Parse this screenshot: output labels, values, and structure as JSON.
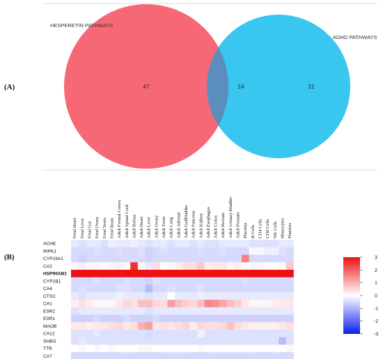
{
  "panel_a": {
    "label": "(A)"
  },
  "panel_b": {
    "label": "(B)"
  },
  "chart_data": [
    {
      "type": "venn",
      "sets": [
        {
          "name": "HESPERETIN PATHWAYS",
          "color": "#f5606f"
        },
        {
          "name": "ADHD PATHWAYS",
          "color": "#2ec3ee"
        }
      ],
      "regions": {
        "only_a": 47,
        "intersection": 14,
        "only_b": 21
      },
      "intersection_color": "#5b8dbd"
    },
    {
      "type": "heatmap",
      "x": [
        "Fetal Heart",
        "Fetal Liver",
        "Fetal Gut",
        "Fetal Ovary",
        "Fetal Testis",
        "Fetal Brain",
        "Adult Frontal Cortex",
        "Adult Spinal Cord",
        "Adult Retina",
        "Adult Heart",
        "Adult Liver",
        "Adult Ovary",
        "Adult Testis",
        "Adult Lung",
        "Adult Adrenal",
        "Adult Gallbladder",
        "Adult Pancreas",
        "Adult Kidney",
        "Adult Esophagus",
        "Adult Colon",
        "Adult Rectum",
        "Adult Urinary Bladder",
        "Adult Prostate",
        "Placenta",
        "B Cells",
        "CD4 Cells",
        "CD8 Cells",
        "NK Cells",
        "Monocytes",
        "Platelets"
      ],
      "y": [
        "ACHE",
        "RIPK1",
        "CYP19A1",
        "CA2",
        "HSP90AB1",
        "CYP1B1",
        "CA4",
        "CTSC",
        "CA1",
        "ESR2",
        "ESR1",
        "MAOB",
        "CA12",
        "SHBG",
        "TTR",
        "CA7"
      ],
      "bold_rows": [
        "HSP90AB1"
      ],
      "values": [
        [
          -0.3,
          -0.4,
          -0.3,
          -0.3,
          -0.4,
          -0.2,
          -0.3,
          -0.3,
          -0.2,
          -0.3,
          -0.4,
          -0.3,
          -0.3,
          -0.4,
          -0.3,
          -0.3,
          -0.4,
          -0.3,
          -0.4,
          -0.4,
          -0.3,
          -0.3,
          -0.3,
          -0.3,
          -0.4,
          -0.4,
          -0.4,
          -0.4,
          -0.3,
          -0.3
        ],
        [
          -0.5,
          -0.5,
          -0.5,
          -0.4,
          -0.5,
          -0.5,
          -0.4,
          -0.5,
          -0.5,
          -0.4,
          -0.6,
          -0.5,
          -0.4,
          -0.5,
          -0.5,
          -0.5,
          -0.5,
          -0.4,
          -0.5,
          -0.5,
          -0.4,
          -0.5,
          -0.5,
          -0.5,
          -0.1,
          -0.1,
          -0.2,
          -0.2,
          -0.4,
          -0.5
        ],
        [
          -0.5,
          -0.6,
          -0.5,
          -0.5,
          -0.5,
          -0.5,
          -0.5,
          -0.5,
          -0.5,
          -0.5,
          -0.6,
          -0.5,
          -0.5,
          -0.5,
          -0.5,
          -0.5,
          -0.5,
          -0.5,
          -0.5,
          -0.5,
          -0.5,
          -0.5,
          -0.5,
          1.6,
          -0.5,
          -0.5,
          -0.5,
          -0.5,
          -0.5,
          -0.5
        ],
        [
          0.1,
          -0.2,
          0.1,
          -0.1,
          0.0,
          -0.1,
          0.2,
          0.1,
          2.6,
          0.1,
          -0.3,
          0.4,
          0.0,
          0.1,
          0.2,
          0.4,
          0.4,
          0.7,
          0.2,
          0.3,
          0.3,
          0.1,
          0.2,
          0.0,
          -0.1,
          -0.1,
          0.0,
          0.0,
          0.1,
          0.7
        ],
        [
          3.0,
          3.0,
          3.0,
          3.0,
          3.0,
          3.0,
          3.0,
          3.0,
          3.0,
          3.0,
          3.0,
          3.0,
          3.0,
          3.0,
          3.0,
          3.0,
          3.0,
          3.0,
          3.0,
          3.0,
          3.0,
          3.0,
          3.0,
          3.0,
          3.0,
          3.0,
          3.0,
          3.0,
          3.0,
          3.0
        ],
        [
          -0.5,
          -0.5,
          -0.5,
          -0.4,
          -0.5,
          -0.5,
          -0.5,
          -0.4,
          -0.5,
          -0.5,
          -0.6,
          -0.4,
          -0.5,
          -0.5,
          -0.5,
          -0.5,
          -0.5,
          -0.5,
          -0.5,
          -0.5,
          -0.5,
          -0.5,
          -0.5,
          -0.4,
          -0.5,
          -0.5,
          -0.5,
          -0.5,
          -0.5,
          -0.5
        ],
        [
          -0.5,
          -0.4,
          -0.5,
          -0.5,
          -0.5,
          -0.5,
          -0.4,
          -0.4,
          -0.5,
          -0.5,
          -0.9,
          -0.5,
          -0.5,
          -0.4,
          -0.5,
          -0.5,
          -0.5,
          -0.4,
          -0.5,
          -0.5,
          -0.5,
          -0.5,
          -0.5,
          -0.5,
          -0.5,
          -0.5,
          -0.5,
          -0.5,
          -0.5,
          -0.5
        ],
        [
          -0.3,
          -0.4,
          -0.3,
          -0.3,
          -0.3,
          -0.3,
          -0.2,
          -0.3,
          -0.3,
          -0.3,
          -0.4,
          -0.3,
          -0.3,
          0.0,
          -0.3,
          -0.3,
          -0.3,
          -0.2,
          -0.3,
          -0.3,
          -0.3,
          -0.3,
          -0.3,
          -0.3,
          -0.3,
          -0.3,
          -0.3,
          -0.3,
          -0.3,
          -0.3
        ],
        [
          0.2,
          0.4,
          0.2,
          0.1,
          0.1,
          0.1,
          0.3,
          0.5,
          0.4,
          0.8,
          0.8,
          0.5,
          0.4,
          1.2,
          0.8,
          0.6,
          0.5,
          0.8,
          1.5,
          1.4,
          1.1,
          0.8,
          0.6,
          0.3,
          0.1,
          0.1,
          0.1,
          0.2,
          0.3,
          0.3
        ],
        [
          -0.4,
          -0.3,
          -0.3,
          -0.3,
          -0.3,
          -0.3,
          -0.3,
          -0.3,
          -0.3,
          -0.3,
          -0.4,
          -0.3,
          -0.3,
          -0.3,
          -0.3,
          -0.3,
          -0.3,
          -0.3,
          -0.3,
          -0.3,
          -0.3,
          -0.3,
          -0.3,
          -0.3,
          -0.3,
          -0.3,
          -0.3,
          -0.3,
          -0.3,
          -0.3
        ],
        [
          -0.6,
          -0.6,
          -0.6,
          -0.5,
          -0.6,
          -0.6,
          -0.6,
          -0.5,
          -0.6,
          -0.6,
          -0.6,
          -0.5,
          -0.6,
          -0.6,
          -0.6,
          -0.6,
          -0.6,
          -0.6,
          -0.6,
          -0.6,
          -0.6,
          -0.6,
          -0.6,
          -0.6,
          -0.6,
          -0.6,
          -0.6,
          -0.6,
          -0.6,
          -0.6
        ],
        [
          0.3,
          0.3,
          0.2,
          0.3,
          0.3,
          0.4,
          0.5,
          0.3,
          0.4,
          1.0,
          1.2,
          0.3,
          0.4,
          0.3,
          0.4,
          0.5,
          0.2,
          0.5,
          0.4,
          0.4,
          0.5,
          0.8,
          0.4,
          0.3,
          0.2,
          0.2,
          0.2,
          0.2,
          0.3,
          0.4
        ],
        [
          -0.4,
          -0.4,
          -0.4,
          -0.3,
          -0.4,
          -0.4,
          -0.4,
          -0.4,
          -0.4,
          -0.4,
          -0.5,
          -0.4,
          -0.4,
          -0.4,
          -0.4,
          -0.4,
          -0.4,
          -0.2,
          -0.4,
          -0.4,
          -0.4,
          -0.4,
          -0.4,
          -0.4,
          -0.4,
          -0.4,
          -0.4,
          -0.4,
          -0.4,
          -0.4
        ],
        [
          -0.4,
          -0.3,
          -0.4,
          -0.4,
          -0.4,
          -0.4,
          -0.4,
          -0.4,
          -0.4,
          -0.4,
          -0.4,
          -0.4,
          -0.4,
          -0.4,
          -0.4,
          -0.4,
          -0.4,
          -0.4,
          -0.4,
          -0.4,
          -0.4,
          -0.4,
          -0.4,
          -0.4,
          -0.4,
          -0.4,
          -0.4,
          -0.4,
          -0.9,
          -0.4
        ],
        [
          0.0,
          0.1,
          0.0,
          -0.1,
          0.0,
          0.1,
          0.0,
          0.0,
          0.0,
          0.1,
          0.1,
          0.0,
          0.0,
          0.0,
          0.0,
          0.0,
          0.0,
          0.1,
          0.0,
          0.0,
          0.0,
          0.0,
          0.0,
          0.0,
          0.0,
          0.0,
          0.0,
          0.0,
          0.0,
          0.1
        ],
        [
          -0.5,
          -0.5,
          -0.5,
          -0.5,
          -0.5,
          -0.5,
          -0.5,
          -0.5,
          -0.5,
          -0.5,
          -0.5,
          -0.5,
          -0.5,
          -0.5,
          -0.5,
          -0.5,
          -0.5,
          -0.5,
          -0.5,
          -0.5,
          -0.5,
          -0.5,
          -0.5,
          -0.5,
          -0.5,
          -0.5,
          -0.5,
          -0.5,
          -0.5,
          -0.5
        ]
      ],
      "color_scale": {
        "min": -3,
        "max": 3,
        "low": "#0a1ef0",
        "mid": "#ffffff",
        "high": "#ee1111"
      },
      "colorbar_ticks": [
        "3",
        "2",
        "1",
        "0",
        "-1",
        "-2",
        "-3"
      ]
    }
  ]
}
